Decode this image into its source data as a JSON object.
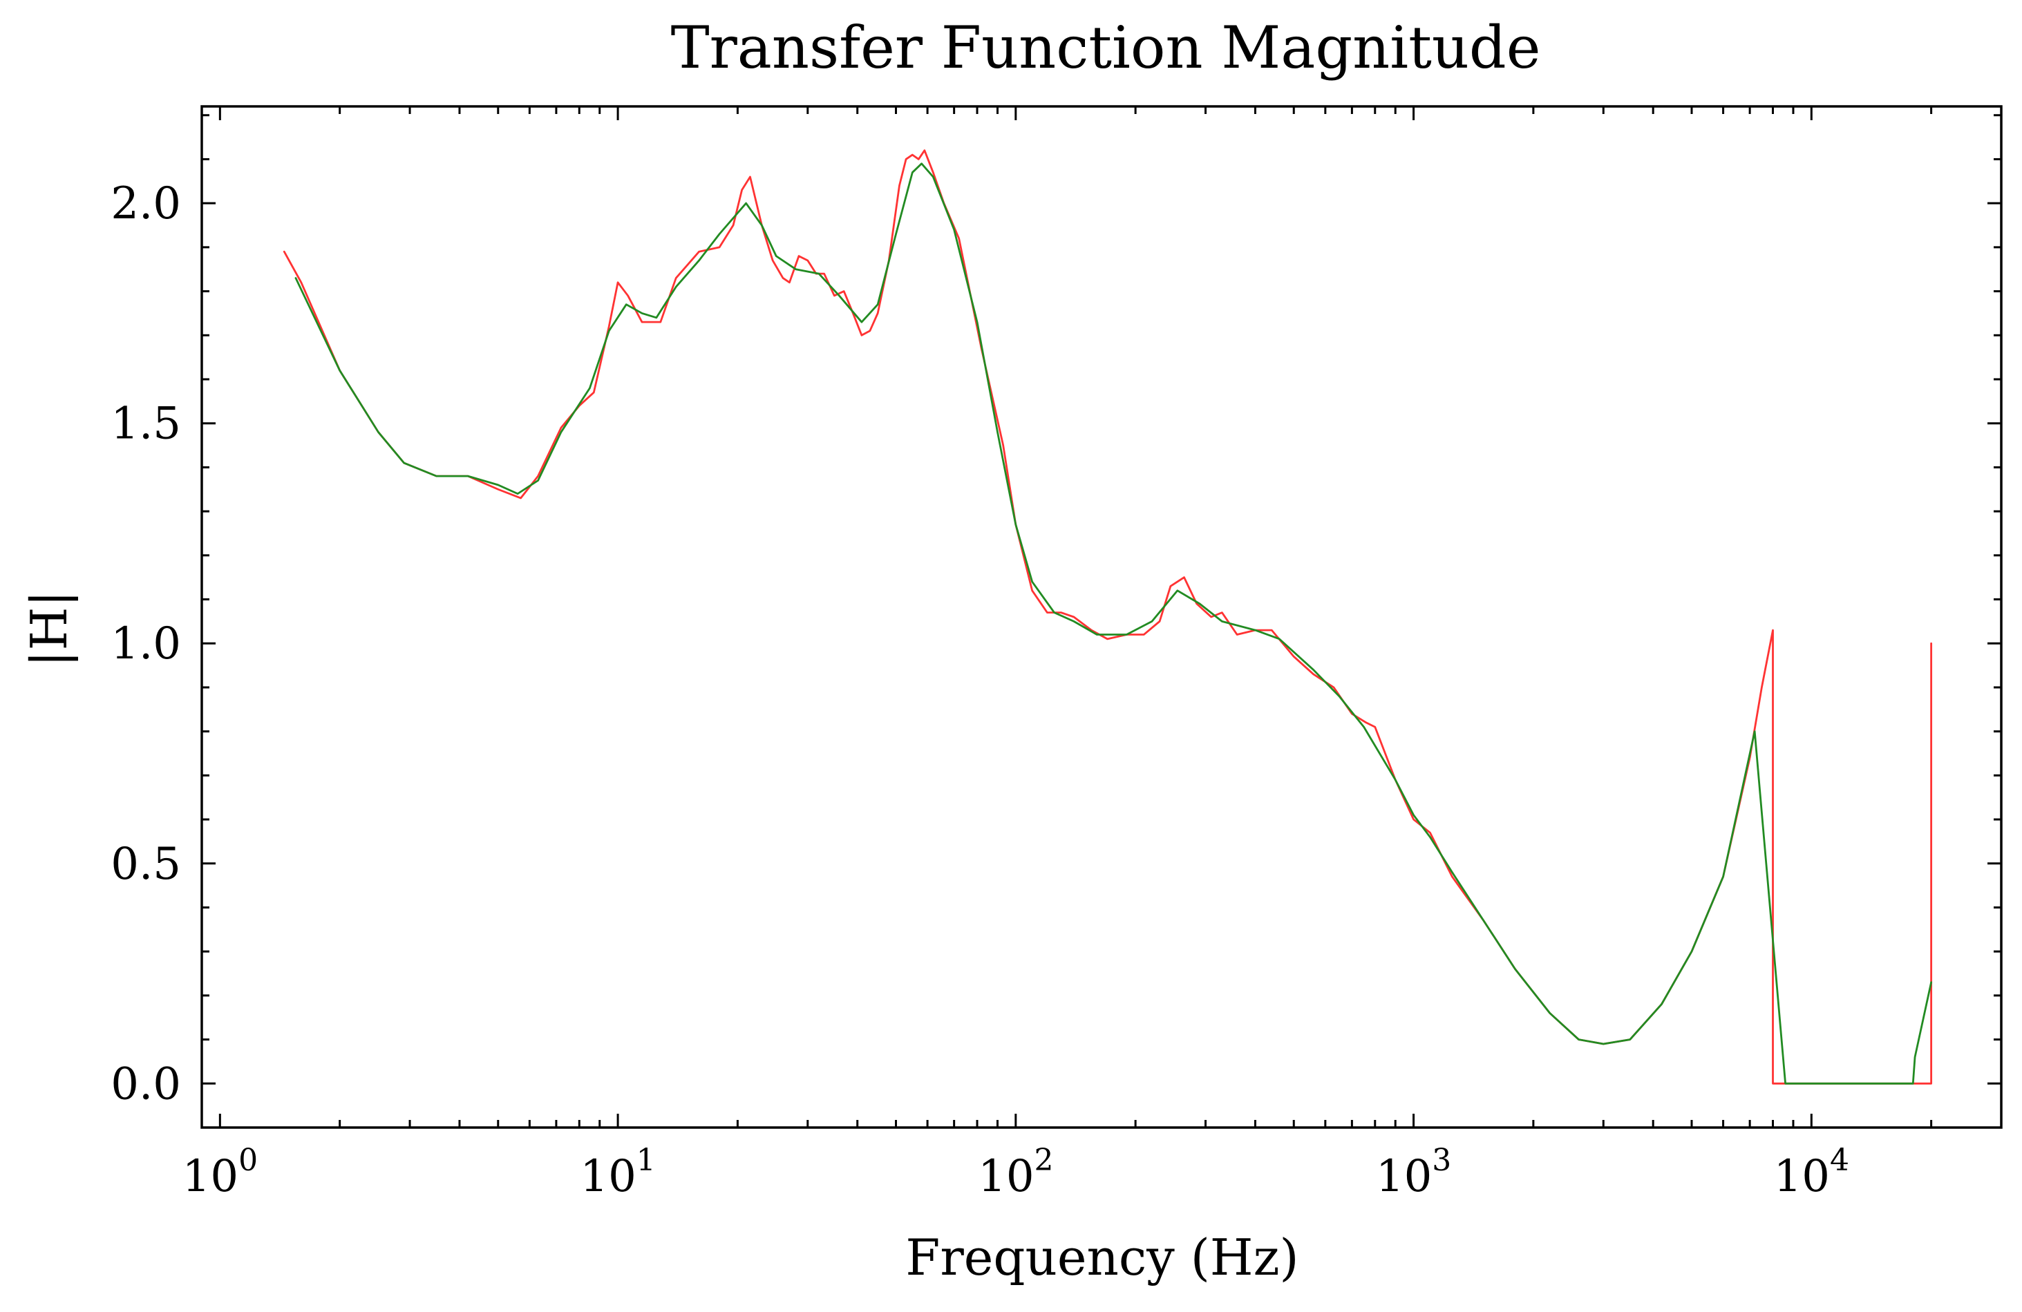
{
  "chart_data": {
    "type": "line",
    "title": "Transfer Function Magnitude",
    "xlabel": "Frequency (Hz)",
    "ylabel": "|H|",
    "xscale": "log",
    "xlim": [
      0.9,
      30000
    ],
    "ylim": [
      -0.1,
      2.22
    ],
    "grid": false,
    "legend": "none",
    "x_ticks": [
      {
        "base": "10",
        "exp": "0",
        "value": 1
      },
      {
        "base": "10",
        "exp": "1",
        "value": 10
      },
      {
        "base": "10",
        "exp": "2",
        "value": 100
      },
      {
        "base": "10",
        "exp": "3",
        "value": 1000
      },
      {
        "base": "10",
        "exp": "4",
        "value": 10000
      }
    ],
    "y_ticks": [
      {
        "label": "0.0",
        "value": 0.0
      },
      {
        "label": "0.5",
        "value": 0.5
      },
      {
        "label": "1.0",
        "value": 1.0
      },
      {
        "label": "1.5",
        "value": 1.5
      },
      {
        "label": "2.0",
        "value": 2.0
      }
    ],
    "series": [
      {
        "color": "#ff3333",
        "points": [
          [
            1.45,
            1.89
          ],
          [
            1.6,
            1.82
          ],
          [
            2.0,
            1.62
          ],
          [
            2.5,
            1.48
          ],
          [
            2.9,
            1.41
          ],
          [
            3.5,
            1.38
          ],
          [
            4.2,
            1.38
          ],
          [
            5.0,
            1.35
          ],
          [
            5.7,
            1.33
          ],
          [
            6.3,
            1.38
          ],
          [
            7.2,
            1.49
          ],
          [
            8.0,
            1.54
          ],
          [
            8.7,
            1.57
          ],
          [
            9.5,
            1.72
          ],
          [
            10.0,
            1.82
          ],
          [
            10.6,
            1.79
          ],
          [
            11.5,
            1.73
          ],
          [
            12.8,
            1.73
          ],
          [
            14.0,
            1.83
          ],
          [
            16.0,
            1.89
          ],
          [
            18.0,
            1.9
          ],
          [
            19.5,
            1.95
          ],
          [
            20.5,
            2.03
          ],
          [
            21.5,
            2.06
          ],
          [
            23.0,
            1.95
          ],
          [
            24.5,
            1.87
          ],
          [
            26.0,
            1.83
          ],
          [
            27.0,
            1.82
          ],
          [
            28.5,
            1.88
          ],
          [
            30.0,
            1.87
          ],
          [
            31.5,
            1.84
          ],
          [
            33.0,
            1.84
          ],
          [
            35.0,
            1.79
          ],
          [
            37.0,
            1.8
          ],
          [
            39.0,
            1.75
          ],
          [
            41.0,
            1.7
          ],
          [
            43.0,
            1.71
          ],
          [
            45.0,
            1.75
          ],
          [
            48.0,
            1.87
          ],
          [
            51.0,
            2.04
          ],
          [
            53.0,
            2.1
          ],
          [
            55.0,
            2.11
          ],
          [
            57.0,
            2.1
          ],
          [
            59.0,
            2.12
          ],
          [
            62.0,
            2.07
          ],
          [
            66.0,
            2.0
          ],
          [
            72.0,
            1.92
          ],
          [
            82.0,
            1.67
          ],
          [
            93.0,
            1.45
          ],
          [
            100.0,
            1.27
          ],
          [
            110.0,
            1.12
          ],
          [
            120.0,
            1.07
          ],
          [
            130.0,
            1.07
          ],
          [
            140.0,
            1.06
          ],
          [
            155.0,
            1.03
          ],
          [
            170.0,
            1.01
          ],
          [
            190.0,
            1.02
          ],
          [
            210.0,
            1.02
          ],
          [
            230.0,
            1.05
          ],
          [
            245.0,
            1.13
          ],
          [
            265.0,
            1.15
          ],
          [
            285.0,
            1.09
          ],
          [
            310.0,
            1.06
          ],
          [
            330.0,
            1.07
          ],
          [
            360.0,
            1.02
          ],
          [
            400.0,
            1.03
          ],
          [
            440.0,
            1.03
          ],
          [
            500.0,
            0.97
          ],
          [
            560.0,
            0.93
          ],
          [
            630.0,
            0.9
          ],
          [
            700.0,
            0.84
          ],
          [
            760.0,
            0.82
          ],
          [
            800.0,
            0.81
          ],
          [
            900.0,
            0.69
          ],
          [
            1000.0,
            0.6
          ],
          [
            1100.0,
            0.57
          ],
          [
            1250.0,
            0.47
          ],
          [
            1500.0,
            0.37
          ],
          [
            1800.0,
            0.26
          ],
          [
            2200.0,
            0.16
          ],
          [
            2600.0,
            0.1
          ],
          [
            3000.0,
            0.09
          ],
          [
            3500.0,
            0.1
          ],
          [
            4200.0,
            0.18
          ],
          [
            5000.0,
            0.3
          ],
          [
            6000.0,
            0.47
          ],
          [
            7000.0,
            0.74
          ],
          [
            7500.0,
            0.9
          ],
          [
            8000.0,
            1.03
          ],
          [
            8000.0,
            0.0
          ],
          [
            20000.0,
            0.0
          ],
          [
            20000.0,
            1.0
          ]
        ]
      },
      {
        "color": "#228b22",
        "points": [
          [
            1.55,
            1.83
          ],
          [
            2.0,
            1.62
          ],
          [
            2.5,
            1.48
          ],
          [
            2.9,
            1.41
          ],
          [
            3.5,
            1.38
          ],
          [
            4.2,
            1.38
          ],
          [
            5.0,
            1.36
          ],
          [
            5.6,
            1.34
          ],
          [
            6.3,
            1.37
          ],
          [
            7.2,
            1.48
          ],
          [
            8.5,
            1.58
          ],
          [
            9.5,
            1.71
          ],
          [
            10.5,
            1.77
          ],
          [
            11.5,
            1.75
          ],
          [
            12.5,
            1.74
          ],
          [
            14.0,
            1.81
          ],
          [
            16.0,
            1.87
          ],
          [
            18.0,
            1.93
          ],
          [
            21.0,
            2.0
          ],
          [
            23.0,
            1.95
          ],
          [
            25.0,
            1.88
          ],
          [
            28.0,
            1.85
          ],
          [
            32.0,
            1.84
          ],
          [
            36.0,
            1.79
          ],
          [
            41.0,
            1.73
          ],
          [
            45.0,
            1.77
          ],
          [
            50.0,
            1.93
          ],
          [
            55.0,
            2.07
          ],
          [
            58.0,
            2.09
          ],
          [
            62.0,
            2.06
          ],
          [
            70.0,
            1.94
          ],
          [
            80.0,
            1.73
          ],
          [
            90.0,
            1.48
          ],
          [
            100.0,
            1.27
          ],
          [
            110.0,
            1.14
          ],
          [
            125.0,
            1.07
          ],
          [
            140.0,
            1.05
          ],
          [
            160.0,
            1.02
          ],
          [
            190.0,
            1.02
          ],
          [
            220.0,
            1.05
          ],
          [
            255.0,
            1.12
          ],
          [
            290.0,
            1.09
          ],
          [
            330.0,
            1.05
          ],
          [
            400.0,
            1.03
          ],
          [
            460.0,
            1.01
          ],
          [
            560.0,
            0.94
          ],
          [
            650.0,
            0.88
          ],
          [
            750.0,
            0.81
          ],
          [
            900.0,
            0.69
          ],
          [
            1000.0,
            0.61
          ],
          [
            1100.0,
            0.56
          ],
          [
            1250.0,
            0.48
          ],
          [
            1500.0,
            0.37
          ],
          [
            1800.0,
            0.26
          ],
          [
            2200.0,
            0.16
          ],
          [
            2600.0,
            0.1
          ],
          [
            3000.0,
            0.09
          ],
          [
            3500.0,
            0.1
          ],
          [
            4200.0,
            0.18
          ],
          [
            5000.0,
            0.3
          ],
          [
            6000.0,
            0.47
          ],
          [
            7200.0,
            0.8
          ],
          [
            8600.0,
            0.0
          ],
          [
            18000.0,
            0.0
          ],
          [
            18200.0,
            0.06
          ],
          [
            20000.0,
            0.23
          ]
        ]
      }
    ]
  }
}
